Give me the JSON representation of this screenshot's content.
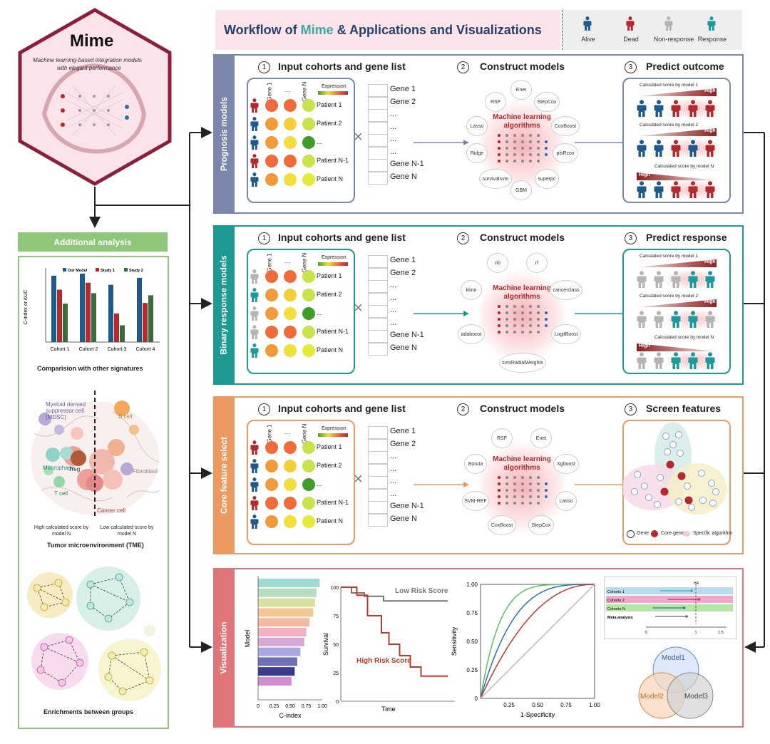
{
  "header": {
    "title_prefix": "Workflow of ",
    "title_mime": "Mime",
    "title_suffix": " & Applications and Visualizations",
    "legend": [
      "Alive",
      "Dead",
      "Non-response",
      "Response"
    ]
  },
  "logo": {
    "title": "Mime",
    "subtitle_line1": "Machine learning-based integration models",
    "subtitle_line2": "with elegant performance"
  },
  "sections": {
    "prognosis": "Prognosis models",
    "binary": "Binary response models",
    "core": "Core feature select",
    "visualization": "Visualization"
  },
  "steps": {
    "input": "Input cohorts and gene list",
    "construct": "Construct models",
    "predict_outcome": "Predict outcome",
    "predict_response": "Predict response",
    "screen_features": "Screen features",
    "num1": "1",
    "num2": "2",
    "num3": "3"
  },
  "cohort": {
    "gene1": "Gene 1",
    "dots": "⋮",
    "geneN": "Gene N",
    "expression": "Expression",
    "patients": [
      "Patient 1",
      "Patient 2",
      "...",
      "Patient N-1",
      "Patient N"
    ]
  },
  "genelist": [
    "Gene 1",
    "Gene 2",
    "...",
    "...",
    "...",
    "...",
    "Gene N-1",
    "Gene N"
  ],
  "ml_label_line1": "Machine learning",
  "ml_label_line2": "algorithms",
  "algorithms": {
    "prognosis": [
      "Enet",
      "StepCox",
      "CoxBoost",
      "plsRcox",
      "superpc",
      "GBM",
      "survivalsvm",
      "Ridge",
      "Lasso",
      "RSF"
    ],
    "binary": [
      "rf",
      "cancerclass",
      "LogitBoost",
      "svmRadialWeights",
      "adaboost",
      "kknn",
      "nb"
    ],
    "core": [
      "Enet",
      "Xgboost",
      "Lasso",
      "StepCox",
      "CoxBoost",
      "SVM-REF",
      "Boruta",
      "RSF"
    ]
  },
  "scores": {
    "model1": "Calculated score by model 1",
    "model2": "Calculated score by model 2",
    "modelN": "Calculated score by model N",
    "high": "High"
  },
  "venn_legend": {
    "gene": "Gene",
    "core": "Core gene",
    "specific": "Specific algorithm"
  },
  "additional": {
    "header": "Additional analysis",
    "comparison_title": "Comparision with other signatures",
    "tme_title": "Tumor microenvironment (TME)",
    "enrich_title": "Enrichments between groups",
    "tme_labels": {
      "mdsc": "Myeloid derived suppressor cell (MDSC)",
      "bcell": "B cell",
      "macrophage": "Macrophage",
      "treg": "Treg",
      "tcell": "T cell",
      "fibroblast": "Fibroblast",
      "cancer": "Cancer cell",
      "high": "High calculated score by model N",
      "low": "Low calculated score by model N"
    }
  },
  "chart_data": [
    {
      "type": "bar",
      "title": "",
      "ylabel": "C-index or AUC",
      "categories": [
        "Cohort 1",
        "Cohort 2",
        "Cohort 3",
        "Cohort 4"
      ],
      "series": [
        {
          "name": "Our Model",
          "color": "#1f5a8c",
          "values": [
            0.95,
            0.98,
            0.82,
            0.92
          ]
        },
        {
          "name": "Study 1",
          "color": "#b2292e",
          "values": [
            0.75,
            0.85,
            0.41,
            0.56
          ]
        },
        {
          "name": "Study 2",
          "color": "#3a6b3a",
          "values": [
            0.55,
            0.7,
            0.24,
            0.67
          ]
        }
      ],
      "ylim": [
        0,
        1
      ]
    },
    {
      "type": "bar",
      "orientation": "horizontal",
      "ylabel": "Model",
      "xlabel": "C-index",
      "xticks": [
        "0",
        "0.25",
        "0.50",
        "0.75",
        "1.00"
      ],
      "values": [
        0.96,
        0.91,
        0.89,
        0.86,
        0.8,
        0.75,
        0.72,
        0.66,
        0.61,
        0.57,
        0.52
      ],
      "colors": [
        "#9fd9d4",
        "#b8dcc0",
        "#d8e0a0",
        "#f2c890",
        "#f5b8a0",
        "#f2b0c0",
        "#d7a8d8",
        "#a8a8e0",
        "#6f6fb8",
        "#3a3a8a",
        "#d090d0"
      ],
      "xlim": [
        0,
        1
      ]
    },
    {
      "type": "line",
      "title": "",
      "xlabel": "Time",
      "ylabel": "Survival",
      "yticks": [
        "100",
        "75",
        "50",
        "25",
        "0"
      ],
      "series": [
        {
          "name": "Low Risk Score",
          "color": "#777777",
          "x": [
            0,
            10,
            10,
            22,
            22,
            40,
            40,
            100
          ],
          "y": [
            100,
            100,
            95,
            95,
            92,
            92,
            88,
            88
          ]
        },
        {
          "name": "High Risk Score",
          "color": "#c0392b",
          "x": [
            0,
            15,
            15,
            25,
            25,
            38,
            38,
            45,
            45,
            55,
            55,
            65,
            65,
            75,
            75,
            100
          ],
          "y": [
            100,
            100,
            93,
            93,
            75,
            75,
            60,
            60,
            50,
            50,
            40,
            40,
            30,
            30,
            22,
            22
          ]
        }
      ]
    },
    {
      "type": "line",
      "title": "",
      "xlabel": "1-Specificity",
      "ylabel": "Sensitivity",
      "xticks": [
        "0.25",
        "0.50",
        "0.75",
        "1.00"
      ],
      "yticks": [
        "1.00",
        "0.75",
        "0.50",
        "0.25",
        "0"
      ],
      "series": [
        {
          "name": "green",
          "color": "#5fbf5f",
          "curve": 6
        },
        {
          "name": "blue",
          "color": "#2a6fb8",
          "curve": 3.5
        },
        {
          "name": "red",
          "color": "#c0392b",
          "curve": 2.2
        },
        {
          "name": "diagonal",
          "color": "#bbbbbb",
          "curve": 1
        }
      ],
      "xlim": [
        0,
        1
      ],
      "ylim": [
        0,
        1
      ]
    },
    {
      "type": "scatter",
      "title": "HR",
      "rows": [
        "Cohorts 1",
        "Cohorts 2",
        "Cohorts N",
        "Meta analysis"
      ],
      "xticks": [
        "0",
        "1",
        "1.5"
      ],
      "estimates": [
        0.6,
        0.75,
        0.45,
        0.5
      ]
    }
  ],
  "venn": [
    "Model1",
    "Model2",
    "Model3"
  ]
}
